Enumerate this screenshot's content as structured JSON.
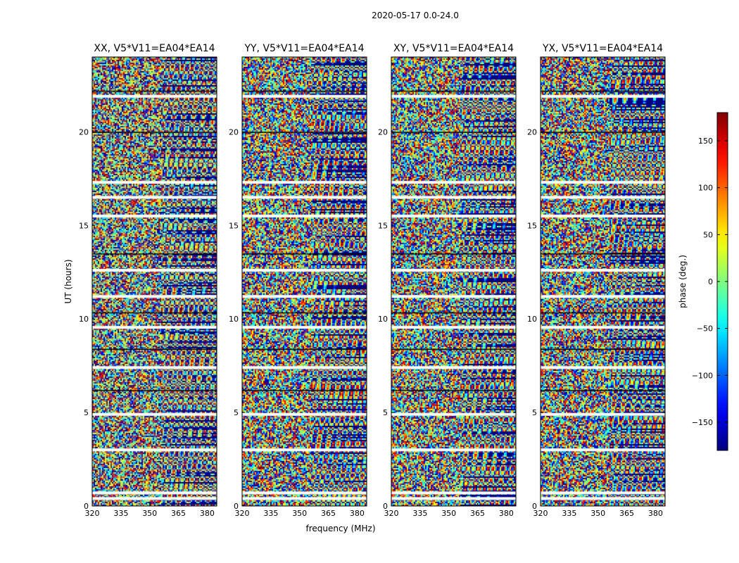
{
  "figure": {
    "suptitle": "2020-05-17 0.0-24.0"
  },
  "chart_data": {
    "type": "heatmap",
    "xlabel": "frequency (MHz)",
    "ylabel": "UT (hours)",
    "xlim": [
      320,
      385
    ],
    "ylim": [
      0,
      24
    ],
    "xticks": [
      320,
      335,
      350,
      365,
      380
    ],
    "yticks": [
      0,
      5,
      10,
      15,
      20
    ],
    "colorbar": {
      "label": "phase (deg.)",
      "range": [
        -180,
        180
      ],
      "ticks": [
        150,
        100,
        50,
        0,
        -50,
        -100,
        -150
      ],
      "colormap": "jet"
    },
    "panels": [
      {
        "title": "XX, V5*V11=EA04*EA14"
      },
      {
        "title": "YY, V5*V11=EA04*EA14"
      },
      {
        "title": "XY, V5*V11=EA04*EA14"
      },
      {
        "title": "YX, V5*V11=EA04*EA14"
      }
    ]
  }
}
